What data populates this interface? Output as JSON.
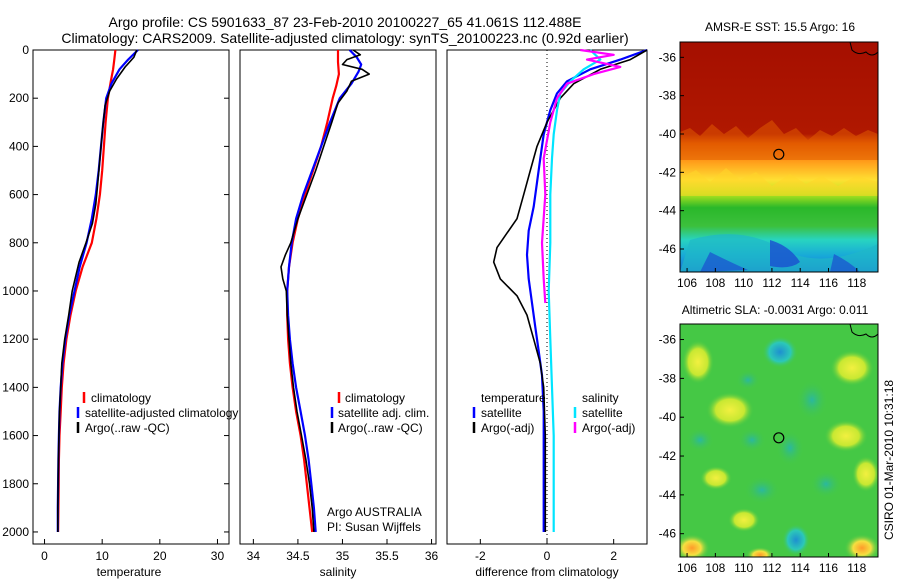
{
  "header": {
    "line1": "Argo profile: CS 5901633_87 23-Feb-2010 20100227_65 41.061S 112.488E",
    "line2": "Climatology: CARS2009. Satellite-adjusted climatology: synTS_20100223.nc (0.92d earlier)"
  },
  "side_label": "CSIRO 01-Mar-2010 10:31:18",
  "colors": {
    "climatology": "#ff0000",
    "satellite": "#0000ff",
    "argo": "#000000",
    "sat_salinity": "#00e5ff",
    "argo_salinity": "#ff00ff"
  },
  "chart_data": [
    {
      "type": "line",
      "id": "temperature",
      "xlabel": "temperature",
      "ylabel": "",
      "xlim": [
        -2,
        32
      ],
      "ylim": [
        0,
        2050
      ],
      "y_reversed": true,
      "xticks": [
        0,
        10,
        20,
        30
      ],
      "yticks": [
        0,
        200,
        400,
        600,
        800,
        1000,
        1200,
        1400,
        1600,
        1800,
        2000
      ],
      "legend": [
        "climatology",
        "satellite-adjusted climatology",
        "Argo(..raw -QC)"
      ],
      "series": [
        {
          "name": "climatology",
          "color": "#ff0000",
          "width": 2.2,
          "points": [
            [
              12.3,
              0
            ],
            [
              12.1,
              40
            ],
            [
              11.9,
              80
            ],
            [
              11.5,
              130
            ],
            [
              11.0,
              200
            ],
            [
              10.6,
              300
            ],
            [
              10.3,
              400
            ],
            [
              10.0,
              500
            ],
            [
              9.6,
              600
            ],
            [
              9.0,
              700
            ],
            [
              8.2,
              800
            ],
            [
              6.6,
              900
            ],
            [
              5.4,
              1000
            ],
            [
              4.5,
              1100
            ],
            [
              3.8,
              1200
            ],
            [
              3.3,
              1300
            ],
            [
              3.0,
              1400
            ],
            [
              2.8,
              1500
            ],
            [
              2.6,
              1600
            ],
            [
              2.5,
              1700
            ],
            [
              2.45,
              1800
            ],
            [
              2.4,
              1900
            ],
            [
              2.35,
              2000
            ]
          ]
        },
        {
          "name": "satellite-adjusted climatology",
          "color": "#0000ff",
          "width": 2.2,
          "points": [
            [
              16.2,
              0
            ],
            [
              14.5,
              40
            ],
            [
              13.0,
              80
            ],
            [
              11.6,
              140
            ],
            [
              10.7,
              200
            ],
            [
              10.2,
              300
            ],
            [
              9.8,
              400
            ],
            [
              9.4,
              500
            ],
            [
              8.9,
              600
            ],
            [
              8.2,
              700
            ],
            [
              7.3,
              800
            ],
            [
              6.1,
              900
            ],
            [
              5.2,
              1000
            ],
            [
              4.3,
              1100
            ],
            [
              3.6,
              1200
            ],
            [
              3.1,
              1300
            ],
            [
              2.8,
              1400
            ],
            [
              2.6,
              1500
            ],
            [
              2.5,
              1600
            ],
            [
              2.4,
              1700
            ],
            [
              2.35,
              1800
            ],
            [
              2.3,
              1900
            ],
            [
              2.3,
              2000
            ]
          ]
        },
        {
          "name": "Argo(..raw -QC)",
          "color": "#000000",
          "width": 1.6,
          "points": [
            [
              16.0,
              0
            ],
            [
              15.5,
              30
            ],
            [
              14.0,
              70
            ],
            [
              12.5,
              120
            ],
            [
              11.3,
              170
            ],
            [
              10.5,
              230
            ],
            [
              10.1,
              320
            ],
            [
              9.8,
              400
            ],
            [
              9.5,
              480
            ],
            [
              9.2,
              560
            ],
            [
              8.9,
              640
            ],
            [
              8.3,
              720
            ],
            [
              7.2,
              800
            ],
            [
              6.0,
              880
            ],
            [
              5.2,
              960
            ],
            [
              4.8,
              1000
            ],
            [
              4.2,
              1100
            ],
            [
              3.5,
              1200
            ],
            [
              3.0,
              1300
            ],
            [
              2.8,
              1400
            ],
            [
              2.6,
              1500
            ],
            [
              2.5,
              1600
            ],
            [
              2.4,
              1700
            ],
            [
              2.35,
              1800
            ],
            [
              2.3,
              1900
            ],
            [
              2.3,
              2000
            ]
          ]
        }
      ]
    },
    {
      "type": "line",
      "id": "salinity",
      "xlabel": "salinity",
      "ylabel": "",
      "xlim": [
        33.85,
        36.05
      ],
      "ylim": [
        0,
        2050
      ],
      "y_reversed": true,
      "xticks": [
        34,
        34.5,
        35,
        35.5,
        36
      ],
      "tick_labels": [
        "34",
        "34.5",
        "35",
        "35.5",
        "36"
      ],
      "legend": [
        "climatology",
        "satellite adj. clim.",
        "Argo(..raw -QC)"
      ],
      "annotation": [
        "Argo AUSTRALIA",
        "PI: Susan Wijffels"
      ],
      "series": [
        {
          "name": "climatology",
          "color": "#ff0000",
          "width": 2.2,
          "points": [
            [
              34.95,
              0
            ],
            [
              34.95,
              50
            ],
            [
              34.96,
              100
            ],
            [
              34.93,
              150
            ],
            [
              34.89,
              200
            ],
            [
              34.83,
              300
            ],
            [
              34.76,
              400
            ],
            [
              34.67,
              500
            ],
            [
              34.58,
              600
            ],
            [
              34.5,
              700
            ],
            [
              34.44,
              800
            ],
            [
              34.4,
              900
            ],
            [
              34.38,
              1000
            ],
            [
              34.38,
              1100
            ],
            [
              34.39,
              1200
            ],
            [
              34.41,
              1300
            ],
            [
              34.44,
              1400
            ],
            [
              34.48,
              1500
            ],
            [
              34.53,
              1600
            ],
            [
              34.57,
              1700
            ],
            [
              34.6,
              1800
            ],
            [
              34.63,
              1900
            ],
            [
              34.66,
              2000
            ]
          ]
        },
        {
          "name": "satellite adj. clim.",
          "color": "#0000ff",
          "width": 2.2,
          "points": [
            [
              35.08,
              0
            ],
            [
              35.16,
              30
            ],
            [
              35.21,
              60
            ],
            [
              35.18,
              90
            ],
            [
              35.1,
              140
            ],
            [
              34.97,
              200
            ],
            [
              34.86,
              300
            ],
            [
              34.76,
              400
            ],
            [
              34.66,
              500
            ],
            [
              34.56,
              600
            ],
            [
              34.48,
              700
            ],
            [
              34.43,
              800
            ],
            [
              34.4,
              900
            ],
            [
              34.38,
              1000
            ],
            [
              34.39,
              1100
            ],
            [
              34.41,
              1200
            ],
            [
              34.44,
              1300
            ],
            [
              34.48,
              1400
            ],
            [
              34.53,
              1500
            ],
            [
              34.58,
              1600
            ],
            [
              34.62,
              1700
            ],
            [
              34.65,
              1800
            ],
            [
              34.68,
              1900
            ],
            [
              34.7,
              2000
            ]
          ]
        },
        {
          "name": "Argo(..raw -QC)",
          "color": "#000000",
          "width": 1.6,
          "points": [
            [
              35.12,
              0
            ],
            [
              35.2,
              20
            ],
            [
              35.05,
              40
            ],
            [
              35.0,
              60
            ],
            [
              35.22,
              80
            ],
            [
              35.3,
              100
            ],
            [
              35.1,
              130
            ],
            [
              35.05,
              170
            ],
            [
              34.95,
              220
            ],
            [
              34.88,
              300
            ],
            [
              34.79,
              400
            ],
            [
              34.7,
              500
            ],
            [
              34.6,
              600
            ],
            [
              34.5,
              700
            ],
            [
              34.42,
              800
            ],
            [
              34.36,
              850
            ],
            [
              34.31,
              900
            ],
            [
              34.33,
              950
            ],
            [
              34.37,
              1000
            ],
            [
              34.38,
              1100
            ],
            [
              34.4,
              1200
            ],
            [
              34.42,
              1300
            ],
            [
              34.45,
              1400
            ],
            [
              34.49,
              1500
            ],
            [
              34.54,
              1600
            ],
            [
              34.59,
              1700
            ],
            [
              34.63,
              1800
            ],
            [
              34.66,
              1900
            ],
            [
              34.68,
              2000
            ]
          ]
        }
      ]
    },
    {
      "type": "line",
      "id": "difference",
      "xlabel": "difference from climatology",
      "ylabel": "",
      "xlim": [
        -3,
        3
      ],
      "ylim": [
        0,
        2050
      ],
      "y_reversed": true,
      "xticks": [
        -2,
        0,
        2
      ],
      "reference_line_x": 0,
      "legend_left": [
        "temperature",
        "satellite",
        "Argo(-adj)"
      ],
      "legend_right": [
        "salinity",
        "satellite",
        "Argo(-adj)"
      ],
      "series": [
        {
          "name": "temperature satellite",
          "color": "#0000ff",
          "width": 2.2,
          "points": [
            [
              3.0,
              0
            ],
            [
              2.2,
              40
            ],
            [
              1.3,
              80
            ],
            [
              0.6,
              130
            ],
            [
              0.3,
              180
            ],
            [
              0.1,
              250
            ],
            [
              -0.1,
              350
            ],
            [
              -0.2,
              450
            ],
            [
              -0.3,
              550
            ],
            [
              -0.4,
              650
            ],
            [
              -0.55,
              750
            ],
            [
              -0.6,
              850
            ],
            [
              -0.55,
              950
            ],
            [
              -0.45,
              1050
            ],
            [
              -0.35,
              1150
            ],
            [
              -0.25,
              1250
            ],
            [
              -0.15,
              1350
            ],
            [
              -0.1,
              1500
            ],
            [
              -0.1,
              1700
            ],
            [
              -0.1,
              2000
            ]
          ]
        },
        {
          "name": "temperature Argo(-adj)",
          "color": "#000000",
          "width": 1.6,
          "points": [
            [
              3.0,
              0
            ],
            [
              2.5,
              40
            ],
            [
              1.6,
              80
            ],
            [
              0.8,
              140
            ],
            [
              0.4,
              200
            ],
            [
              0.0,
              300
            ],
            [
              -0.3,
              400
            ],
            [
              -0.5,
              500
            ],
            [
              -0.7,
              600
            ],
            [
              -0.9,
              700
            ],
            [
              -1.2,
              760
            ],
            [
              -1.5,
              820
            ],
            [
              -1.6,
              880
            ],
            [
              -1.4,
              950
            ],
            [
              -0.9,
              1020
            ],
            [
              -0.6,
              1100
            ],
            [
              -0.4,
              1200
            ],
            [
              -0.2,
              1300
            ],
            [
              -0.1,
              1400
            ],
            [
              -0.05,
              1600
            ],
            [
              -0.05,
              2000
            ]
          ]
        },
        {
          "name": "salinity satellite",
          "color": "#00e5ff",
          "width": 2.2,
          "points": [
            [
              1.3,
              0
            ],
            [
              1.6,
              40
            ],
            [
              1.1,
              80
            ],
            [
              0.7,
              130
            ],
            [
              0.4,
              180
            ],
            [
              0.3,
              250
            ],
            [
              0.2,
              350
            ],
            [
              0.15,
              450
            ],
            [
              0.1,
              600
            ],
            [
              0.1,
              800
            ],
            [
              0.05,
              1000
            ],
            [
              0.1,
              1200
            ],
            [
              0.15,
              1400
            ],
            [
              0.2,
              1600
            ],
            [
              0.2,
              1800
            ],
            [
              0.2,
              2000
            ]
          ]
        },
        {
          "name": "salinity Argo(-adj)",
          "color": "#ff00ff",
          "width": 2.2,
          "points": [
            [
              1.0,
              0
            ],
            [
              2.0,
              20
            ],
            [
              1.2,
              40
            ],
            [
              2.2,
              70
            ],
            [
              1.4,
              100
            ],
            [
              0.6,
              140
            ],
            [
              0.3,
              200
            ],
            [
              0.1,
              300
            ],
            [
              -0.1,
              450
            ],
            [
              -0.05,
              600
            ],
            [
              -0.15,
              800
            ],
            [
              -0.1,
              950
            ],
            [
              -0.05,
              1050
            ]
          ]
        }
      ]
    },
    {
      "type": "heatmap",
      "id": "sst-map",
      "title": "AMSR-E SST: 15.5  Argo: 16",
      "xlim": [
        105.5,
        119.5
      ],
      "ylim": [
        -47.2,
        -35.2
      ],
      "xticks": [
        106,
        108,
        110,
        112,
        114,
        116,
        118
      ],
      "yticks": [
        -36,
        -38,
        -40,
        -42,
        -44,
        -46
      ],
      "marker": {
        "lon": 112.488,
        "lat": -41.061
      }
    },
    {
      "type": "heatmap",
      "id": "sla-map",
      "title": "Altimetric SLA: -0.0031  Argo: 0.011",
      "xlim": [
        105.5,
        119.5
      ],
      "ylim": [
        -47.2,
        -35.2
      ],
      "xticks": [
        106,
        108,
        110,
        112,
        114,
        116,
        118
      ],
      "yticks": [
        -36,
        -38,
        -40,
        -42,
        -44,
        -46
      ],
      "marker": {
        "lon": 112.488,
        "lat": -41.061
      }
    }
  ]
}
